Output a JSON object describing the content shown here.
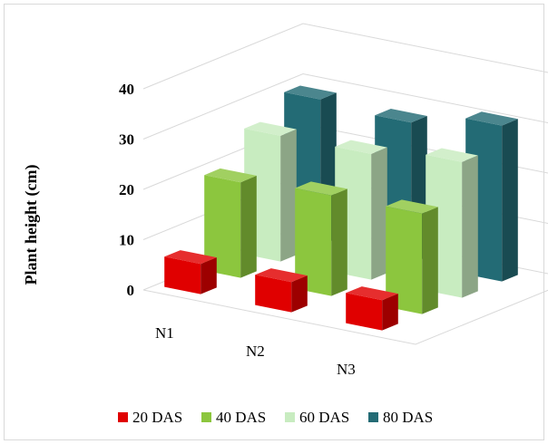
{
  "chart_data": {
    "type": "bar",
    "style": "3d-clustered-depth",
    "ylabel": "Plant height (cm)",
    "ylim": [
      0,
      40
    ],
    "yticks": [
      "0",
      "10",
      "20",
      "30",
      "40"
    ],
    "categories": [
      "N1",
      "N2",
      "N3"
    ],
    "series": [
      {
        "name": "20 DAS",
        "color": "#e00000",
        "values": [
          6,
          6,
          6
        ]
      },
      {
        "name": "40 DAS",
        "color": "#8cc63e",
        "values": [
          19,
          20,
          20
        ]
      },
      {
        "name": "60 DAS",
        "color": "#c8ecc0",
        "values": [
          25,
          25,
          27
        ]
      },
      {
        "name": "80 DAS",
        "color": "#236b75",
        "values": [
          29,
          28,
          31
        ]
      }
    ],
    "grid": true,
    "legend_position": "bottom"
  }
}
